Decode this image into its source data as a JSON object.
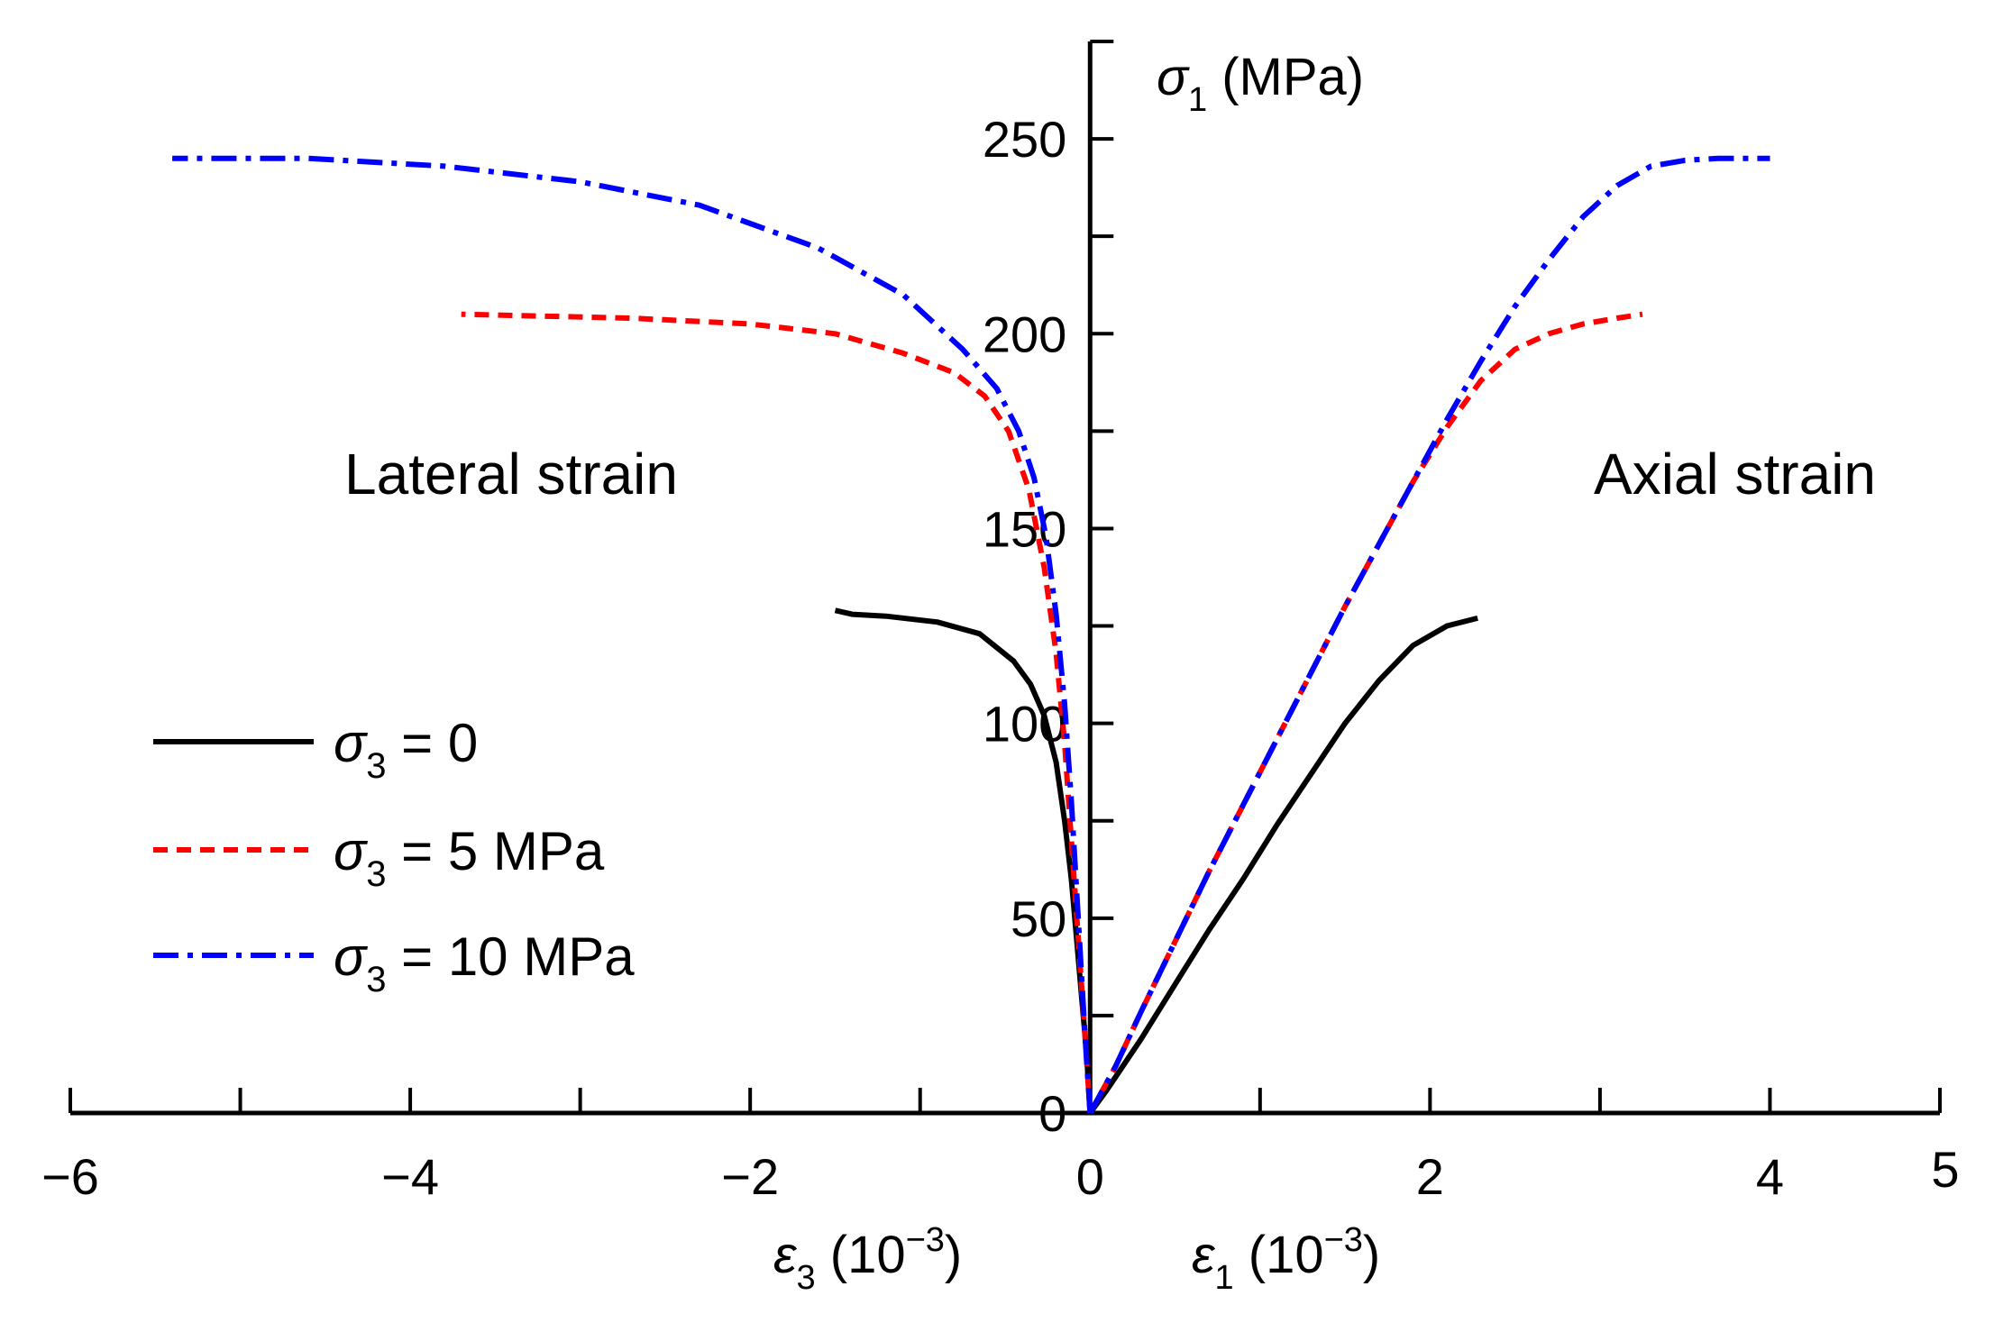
{
  "chart_data": {
    "type": "line",
    "x_axis": {
      "min": -6,
      "max": 5,
      "tick_labels": [
        "−6",
        "−4",
        "−2",
        "0",
        "2",
        "4",
        "5"
      ],
      "tick_values": [
        -6,
        -4,
        -2,
        0,
        2,
        4,
        5
      ],
      "label_lateral": {
        "symbol": "ε",
        "sub": "3",
        "rest": " (10",
        "sup": "−3",
        "close": ")"
      },
      "label_axial": {
        "symbol": "ε",
        "sub": "1",
        "rest": " (10",
        "sup": "−3",
        "close": ")"
      }
    },
    "y_axis": {
      "min": 0,
      "max": 275,
      "tick_labels": [
        "0",
        "50",
        "100",
        "150",
        "200",
        "250"
      ],
      "tick_values": [
        0,
        50,
        100,
        150,
        200,
        250
      ],
      "label": {
        "symbol": "σ",
        "sub": "1",
        "rest": " (MPa)"
      }
    },
    "annotations": {
      "lateral": "Lateral strain",
      "axial": "Axial strain"
    },
    "series": [
      {
        "name": "σ₃ = 0",
        "legend": {
          "symbol": "σ",
          "sub": "3",
          "rest": " = 0"
        },
        "color": "#000000",
        "dash": "solid",
        "lateral": [
          [
            0,
            0
          ],
          [
            -0.02,
            15
          ],
          [
            -0.05,
            30
          ],
          [
            -0.08,
            45
          ],
          [
            -0.11,
            60
          ],
          [
            -0.15,
            75
          ],
          [
            -0.2,
            90
          ],
          [
            -0.27,
            102
          ],
          [
            -0.35,
            110
          ],
          [
            -0.45,
            116
          ],
          [
            -0.65,
            123
          ],
          [
            -0.9,
            126
          ],
          [
            -1.2,
            127.5
          ],
          [
            -1.4,
            128
          ],
          [
            -1.5,
            129
          ]
        ],
        "axial": [
          [
            0,
            0
          ],
          [
            0.1,
            6
          ],
          [
            0.3,
            19
          ],
          [
            0.5,
            33
          ],
          [
            0.7,
            47
          ],
          [
            0.9,
            60
          ],
          [
            1.1,
            74
          ],
          [
            1.3,
            87
          ],
          [
            1.5,
            100
          ],
          [
            1.7,
            111
          ],
          [
            1.9,
            120
          ],
          [
            2.1,
            125
          ],
          [
            2.28,
            127
          ]
        ]
      },
      {
        "name": "σ₃ = 5 MPa",
        "legend": {
          "symbol": "σ",
          "sub": "3",
          "rest": " = 5 MPa"
        },
        "color": "#ff0000",
        "dash": "dashed",
        "lateral": [
          [
            0,
            0
          ],
          [
            -0.03,
            20
          ],
          [
            -0.07,
            45
          ],
          [
            -0.11,
            70
          ],
          [
            -0.15,
            95
          ],
          [
            -0.2,
            118
          ],
          [
            -0.27,
            140
          ],
          [
            -0.36,
            160
          ],
          [
            -0.48,
            175
          ],
          [
            -0.62,
            184
          ],
          [
            -0.8,
            190
          ],
          [
            -1.1,
            195
          ],
          [
            -1.5,
            200
          ],
          [
            -2.0,
            202.5
          ],
          [
            -2.7,
            204
          ],
          [
            -3.7,
            205
          ]
        ],
        "axial": [
          [
            0,
            0
          ],
          [
            0.15,
            12
          ],
          [
            0.3,
            26
          ],
          [
            0.5,
            44
          ],
          [
            0.7,
            62
          ],
          [
            0.9,
            79
          ],
          [
            1.1,
            96
          ],
          [
            1.3,
            113
          ],
          [
            1.5,
            130
          ],
          [
            1.7,
            146
          ],
          [
            1.9,
            162
          ],
          [
            2.1,
            176
          ],
          [
            2.3,
            188
          ],
          [
            2.5,
            196
          ],
          [
            2.7,
            200
          ],
          [
            2.9,
            202.5
          ],
          [
            3.1,
            204
          ],
          [
            3.25,
            205
          ]
        ]
      },
      {
        "name": "σ₃ = 10 MPa",
        "legend": {
          "symbol": "σ",
          "sub": "3",
          "rest": " = 10 MPa"
        },
        "color": "#0000ff",
        "dash": "dashdot",
        "lateral": [
          [
            0,
            0
          ],
          [
            -0.03,
            20
          ],
          [
            -0.07,
            50
          ],
          [
            -0.11,
            80
          ],
          [
            -0.15,
            105
          ],
          [
            -0.2,
            128
          ],
          [
            -0.26,
            148
          ],
          [
            -0.33,
            163
          ],
          [
            -0.42,
            175
          ],
          [
            -0.55,
            186
          ],
          [
            -0.75,
            196
          ],
          [
            -1.1,
            210
          ],
          [
            -1.6,
            222
          ],
          [
            -2.3,
            233
          ],
          [
            -3.0,
            239
          ],
          [
            -3.8,
            243
          ],
          [
            -4.6,
            245
          ],
          [
            -5.4,
            245
          ]
        ],
        "axial": [
          [
            0,
            0
          ],
          [
            0.15,
            12
          ],
          [
            0.3,
            26
          ],
          [
            0.5,
            44
          ],
          [
            0.7,
            62
          ],
          [
            0.9,
            79
          ],
          [
            1.1,
            96
          ],
          [
            1.3,
            113
          ],
          [
            1.5,
            130
          ],
          [
            1.7,
            146
          ],
          [
            1.9,
            162
          ],
          [
            2.1,
            178
          ],
          [
            2.3,
            193
          ],
          [
            2.5,
            207
          ],
          [
            2.7,
            219
          ],
          [
            2.9,
            230
          ],
          [
            3.1,
            238
          ],
          [
            3.3,
            243
          ],
          [
            3.5,
            244.5
          ],
          [
            3.7,
            245
          ],
          [
            4.0,
            245
          ]
        ]
      }
    ]
  }
}
